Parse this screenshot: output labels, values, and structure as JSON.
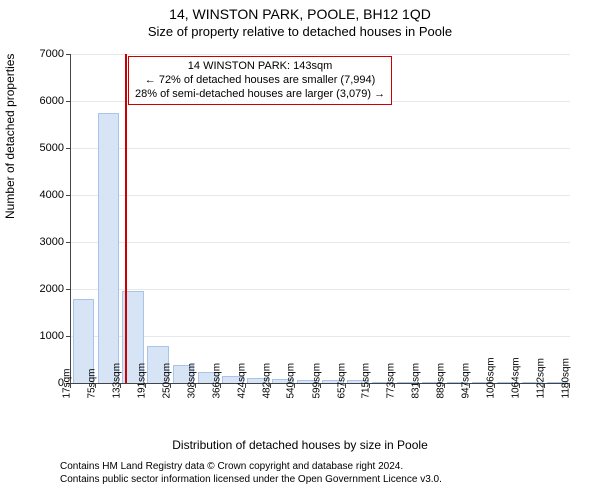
{
  "title_main": "14, WINSTON PARK, POOLE, BH12 1QD",
  "title_sub": "Size of property relative to detached houses in Poole",
  "ylabel": "Number of detached properties",
  "xlabel": "Distribution of detached houses by size in Poole",
  "footer_line1": "Contains HM Land Registry data © Crown copyright and database right 2024.",
  "footer_line2": "Contains public sector information licensed under the Open Government Licence v3.0.",
  "chart": {
    "type": "bar",
    "background_color": "#ffffff",
    "grid_color": "#e8e8e8",
    "axis_color": "#444444",
    "bar_fill": "#d6e4f5",
    "bar_stroke": "#a8c4e8",
    "marker_color": "#cc0000",
    "annotation_border": "#cc0000",
    "ylim_max": 7000,
    "ytick_step": 1000,
    "x_ticks": [
      "17sqm",
      "75sqm",
      "133sqm",
      "191sqm",
      "250sqm",
      "308sqm",
      "366sqm",
      "424sqm",
      "482sqm",
      "540sqm",
      "599sqm",
      "657sqm",
      "715sqm",
      "773sqm",
      "831sqm",
      "889sqm",
      "947sqm",
      "1006sqm",
      "1064sqm",
      "1122sqm",
      "1180sqm"
    ],
    "x_tick_values": [
      17,
      75,
      133,
      191,
      250,
      308,
      366,
      424,
      482,
      540,
      599,
      657,
      715,
      773,
      831,
      889,
      947,
      1006,
      1064,
      1122,
      1180
    ],
    "x_min": 17,
    "x_max": 1180,
    "bars": [
      {
        "x": 46,
        "value": 1780
      },
      {
        "x": 104,
        "value": 5750
      },
      {
        "x": 162,
        "value": 1950
      },
      {
        "x": 220,
        "value": 780
      },
      {
        "x": 279,
        "value": 380
      },
      {
        "x": 337,
        "value": 230
      },
      {
        "x": 395,
        "value": 150
      },
      {
        "x": 453,
        "value": 110
      },
      {
        "x": 511,
        "value": 90
      },
      {
        "x": 569,
        "value": 70
      },
      {
        "x": 628,
        "value": 65
      },
      {
        "x": 686,
        "value": 55
      },
      {
        "x": 744,
        "value": 25
      },
      {
        "x": 802,
        "value": 20
      },
      {
        "x": 860,
        "value": 15
      },
      {
        "x": 918,
        "value": 10
      },
      {
        "x": 976,
        "value": 8
      },
      {
        "x": 1035,
        "value": 6
      },
      {
        "x": 1093,
        "value": 5
      },
      {
        "x": 1151,
        "value": 4
      }
    ],
    "bar_width_units": 50,
    "marker_x": 143,
    "annotation": {
      "line1": "14 WINSTON PARK: 143sqm",
      "line2": "← 72% of detached houses are smaller (7,994)",
      "line3": "28% of semi-detached houses are larger (3,079) →"
    }
  }
}
